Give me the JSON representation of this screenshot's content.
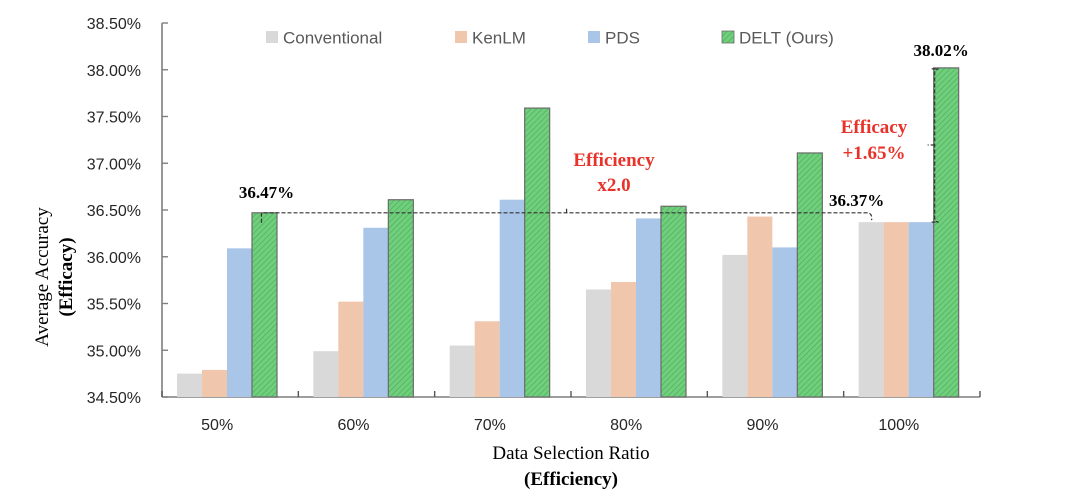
{
  "chart_data": {
    "type": "bar",
    "title": "",
    "xlabel": "Data Selection Ratio",
    "xlabel_sub": "(Efficiency)",
    "ylabel": "Average Accuracy",
    "ylabel_sub": "(Efficacy)",
    "ylim": [
      34.5,
      38.5
    ],
    "yticks": [
      34.5,
      35.0,
      35.5,
      36.0,
      36.5,
      37.0,
      37.5,
      38.0,
      38.5
    ],
    "ytick_labels": [
      "34.50%",
      "35.00%",
      "35.50%",
      "36.00%",
      "36.50%",
      "37.00%",
      "37.50%",
      "38.00%",
      "38.50%"
    ],
    "categories": [
      "50%",
      "60%",
      "70%",
      "80%",
      "90%",
      "100%"
    ],
    "grid": false,
    "legend_position": "top",
    "series": [
      {
        "name": "Conventional",
        "color": "#d9d9d9",
        "pattern": "solid",
        "values": [
          34.75,
          34.99,
          35.05,
          35.65,
          36.02,
          36.37
        ]
      },
      {
        "name": "KenLM",
        "color": "#f0c6ad",
        "pattern": "solid",
        "values": [
          34.79,
          35.52,
          35.31,
          35.73,
          36.43,
          36.37
        ]
      },
      {
        "name": "PDS",
        "color": "#a9c6e8",
        "pattern": "solid",
        "values": [
          36.09,
          36.31,
          36.61,
          36.41,
          36.1,
          36.37
        ]
      },
      {
        "name": "DELT (Ours)",
        "color": "#6fcf7d",
        "pattern": "hatched",
        "values": [
          36.47,
          36.61,
          37.59,
          36.54,
          37.11,
          38.02
        ]
      }
    ],
    "annotations": {
      "label_delt_50": "36.47%",
      "label_conv_100": "36.37%",
      "label_delt_100": "38.02%",
      "efficiency_line1": "Efficiency",
      "efficiency_line2": "x2.0",
      "efficacy_line1": "Efficacy",
      "efficacy_line2": "+1.65%"
    }
  }
}
